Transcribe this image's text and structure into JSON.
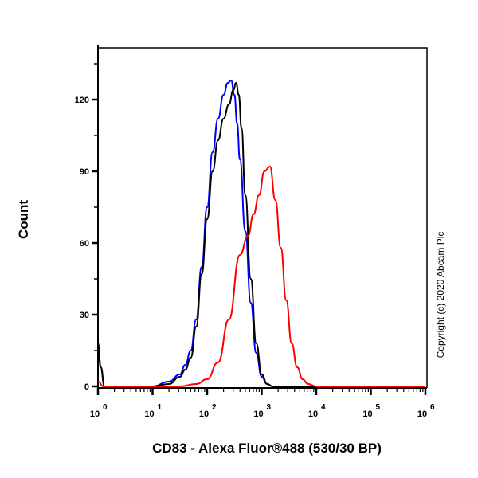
{
  "chart_data": {
    "type": "line",
    "title": "",
    "xlabel": "CD83 - Alexa Fluor®488 (530/30 BP)",
    "ylabel": "Count",
    "xscale": "log",
    "xlim": [
      1,
      1000000
    ],
    "ylim": [
      0,
      140
    ],
    "x_ticks": [
      "10^0",
      "10^1",
      "10^2",
      "10^3",
      "10^4",
      "10^5",
      "10^6"
    ],
    "y_ticks": [
      0,
      30,
      60,
      90,
      120
    ],
    "grid": false,
    "legend": null,
    "annotation": "Copyright (c) 2020 Abcam Plc",
    "series": [
      {
        "name": "blue",
        "color": "#0000ff",
        "log10_x": [
          0.0,
          0.05,
          0.12,
          0.2,
          0.5,
          1.0,
          1.3,
          1.5,
          1.6,
          1.7,
          1.8,
          1.9,
          2.0,
          2.1,
          2.2,
          2.3,
          2.38,
          2.44,
          2.5,
          2.55,
          2.6,
          2.7,
          2.8,
          2.9,
          3.0,
          3.1,
          3.2,
          3.5,
          6.0
        ],
        "counts": [
          18,
          8,
          0,
          0,
          0,
          0,
          2,
          5,
          9,
          15,
          28,
          50,
          75,
          98,
          112,
          122,
          127,
          128,
          122,
          110,
          95,
          65,
          35,
          14,
          4,
          1,
          0,
          0,
          0
        ]
      },
      {
        "name": "black",
        "color": "#000000",
        "log10_x": [
          0.0,
          0.05,
          0.12,
          0.2,
          0.5,
          1.0,
          1.3,
          1.5,
          1.6,
          1.7,
          1.8,
          1.9,
          2.0,
          2.1,
          2.2,
          2.3,
          2.4,
          2.48,
          2.53,
          2.58,
          2.63,
          2.7,
          2.8,
          2.9,
          3.0,
          3.1,
          3.2,
          3.5,
          6.0
        ],
        "counts": [
          18,
          8,
          0,
          0,
          0,
          0,
          1,
          4,
          7,
          12,
          25,
          47,
          70,
          90,
          103,
          112,
          118,
          124,
          127,
          122,
          108,
          80,
          45,
          18,
          5,
          1,
          0,
          0,
          0
        ]
      },
      {
        "name": "red",
        "color": "#ff0000",
        "log10_x": [
          0.0,
          0.1,
          0.5,
          1.0,
          1.5,
          1.8,
          2.0,
          2.2,
          2.4,
          2.6,
          2.75,
          2.85,
          2.95,
          3.05,
          3.15,
          3.25,
          3.35,
          3.45,
          3.55,
          3.65,
          3.75,
          3.85,
          4.0,
          6.0
        ],
        "counts": [
          2,
          0,
          0,
          0,
          0,
          1,
          3,
          10,
          28,
          55,
          63,
          72,
          80,
          90,
          92,
          78,
          58,
          36,
          18,
          8,
          3,
          1,
          0,
          0
        ]
      }
    ]
  },
  "labels": {
    "ylabel": "Count",
    "xlabel": "CD83 - Alexa Fluor®488 (530/30 BP)",
    "copyright": "Copyright (c) 2020 Abcam Plc"
  }
}
